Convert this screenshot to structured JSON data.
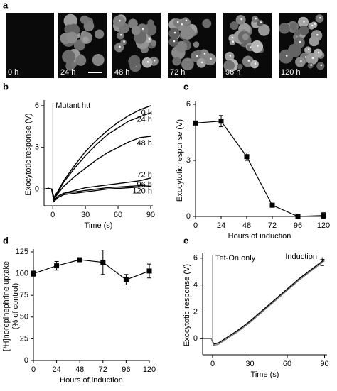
{
  "image_panel": {
    "label": "a",
    "images": [
      "0 h",
      "24 h",
      "48 h",
      "72 h",
      "96 h",
      "120 h"
    ]
  },
  "chart_data": [
    {
      "type": "line",
      "label": "b",
      "annotation": "Mutant htt",
      "xlabel": "Time (s)",
      "ylabel": "Exocytotic response (V)",
      "x": [
        -8,
        -4,
        -1,
        1,
        5,
        10,
        20,
        30,
        40,
        50,
        60,
        70,
        80,
        90
      ],
      "xlim": [
        -8,
        92
      ],
      "ylim": [
        -1.2,
        6.2
      ],
      "xticks": [
        0,
        30,
        60,
        90
      ],
      "yticks": [
        0,
        3,
        6
      ],
      "series": [
        {
          "name": "0 h",
          "color": "#000000",
          "values": [
            0,
            0.05,
            0,
            -0.6,
            -0.1,
            0.6,
            1.7,
            2.7,
            3.5,
            4.2,
            4.8,
            5.3,
            5.7,
            6.0
          ]
        },
        {
          "name": "24 h",
          "color": "#000000",
          "values": [
            0,
            0.05,
            0,
            -0.6,
            -0.2,
            0.5,
            1.5,
            2.4,
            3.2,
            3.9,
            4.4,
            4.9,
            5.2,
            5.5
          ]
        },
        {
          "name": "48 h",
          "color": "#000000",
          "values": [
            0,
            0.05,
            0,
            -0.7,
            -0.3,
            0.2,
            0.9,
            1.5,
            2.1,
            2.6,
            3.0,
            3.4,
            3.7,
            3.8
          ]
        },
        {
          "name": "72 h",
          "color": "#000000",
          "values": [
            0,
            0.05,
            0,
            -0.8,
            -0.5,
            -0.3,
            -0.1,
            0.1,
            0.2,
            0.3,
            0.4,
            0.5,
            0.6,
            0.8
          ]
        },
        {
          "name": "96 h",
          "color": "#000000",
          "values": [
            0,
            0.05,
            0,
            -0.8,
            -0.5,
            -0.3,
            -0.2,
            -0.1,
            0,
            0.1,
            0.15,
            0.2,
            0.25,
            0.3
          ]
        },
        {
          "name": "120 h",
          "color": "#000000",
          "values": [
            0,
            0.05,
            0,
            -0.9,
            -0.6,
            -0.4,
            -0.3,
            -0.2,
            -0.1,
            0,
            0.05,
            0.1,
            0.15,
            0.2
          ]
        }
      ]
    },
    {
      "type": "errorline",
      "label": "c",
      "xlabel": "Hours of induction",
      "ylabel": "Exocytotic response (V)",
      "x": [
        0,
        24,
        48,
        72,
        96,
        120
      ],
      "xlim": [
        0,
        120
      ],
      "ylim": [
        0,
        6
      ],
      "xticks": [
        0,
        24,
        48,
        72,
        96,
        120
      ],
      "yticks": [
        0,
        3,
        6
      ],
      "series": [
        {
          "color": "#000000",
          "values": [
            5.0,
            5.1,
            3.2,
            0.6,
            0.0,
            0.05
          ],
          "errors": [
            0.1,
            0.3,
            0.2,
            0.05,
            0.05,
            0.15
          ]
        }
      ]
    },
    {
      "type": "errorline",
      "label": "d",
      "xlabel": "Hours of induction",
      "ylabel": [
        "[³H]norepinephrine uptake",
        "(% of control)"
      ],
      "x": [
        0,
        24,
        48,
        72,
        96,
        120
      ],
      "xlim": [
        0,
        120
      ],
      "ylim": [
        0,
        125
      ],
      "xticks": [
        0,
        24,
        48,
        72,
        96,
        120
      ],
      "yticks": [
        0,
        25,
        50,
        75,
        100,
        125
      ],
      "series": [
        {
          "color": "#000000",
          "values": [
            100,
            109,
            116,
            113,
            93,
            103
          ],
          "errors": [
            3,
            5,
            1,
            14,
            6,
            8
          ]
        }
      ]
    },
    {
      "type": "line",
      "label": "e",
      "annotation": "Tet-On only",
      "legend_title": "Induction",
      "xlabel": "Time (s)",
      "ylabel": "Exocytotic response (V)",
      "x": [
        -8,
        -4,
        -1,
        1,
        5,
        10,
        20,
        30,
        40,
        50,
        60,
        70,
        80,
        90
      ],
      "xlim": [
        -8,
        92
      ],
      "ylim": [
        -1.2,
        6.2
      ],
      "xticks": [
        0,
        30,
        60,
        90
      ],
      "yticks": [
        0,
        2,
        4,
        6
      ],
      "series": [
        {
          "name": "+",
          "color": "#000000",
          "values": [
            0,
            0,
            0,
            -0.4,
            -0.3,
            0,
            0.6,
            1.3,
            2.1,
            2.9,
            3.7,
            4.5,
            5.2,
            5.9
          ]
        },
        {
          "name": "−",
          "color": "#777777",
          "values": [
            0,
            0,
            0,
            -0.5,
            -0.4,
            -0.1,
            0.5,
            1.2,
            2.0,
            2.8,
            3.6,
            4.4,
            5.1,
            5.8
          ]
        }
      ]
    }
  ]
}
